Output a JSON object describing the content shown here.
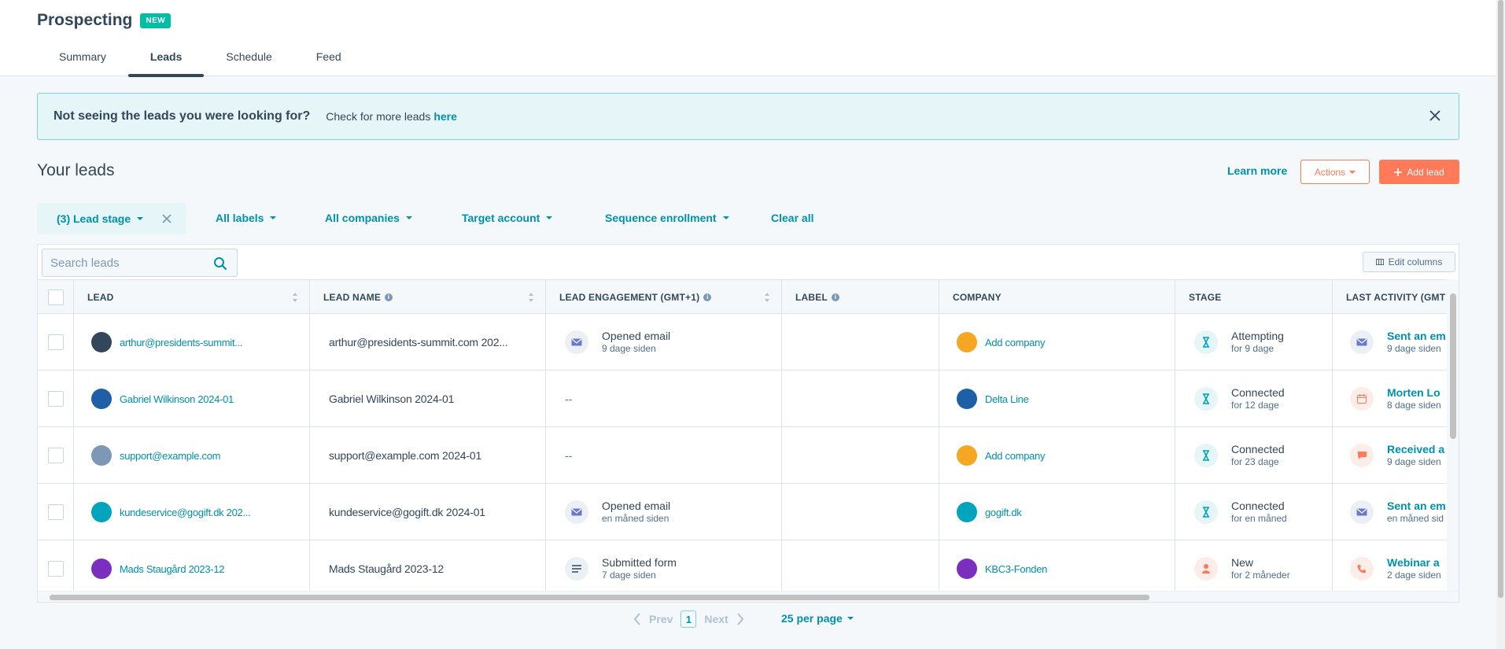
{
  "header": {
    "title": "Prospecting",
    "badge": "NEW",
    "tabs": [
      {
        "label": "Summary"
      },
      {
        "label": "Leads"
      },
      {
        "label": "Schedule"
      },
      {
        "label": "Feed"
      }
    ],
    "active_tab": "Leads"
  },
  "alert": {
    "title": "Not seeing the leads you were looking for?",
    "text": "Check for more leads",
    "link": "here"
  },
  "section": {
    "title": "Your leads",
    "learn_more": "Learn more",
    "actions_label": "Actions",
    "add_label": "Add lead"
  },
  "filters": {
    "active_chip": "(3) Lead stage",
    "items": [
      {
        "label": "All labels"
      },
      {
        "label": "All companies"
      },
      {
        "label": "Target account"
      },
      {
        "label": "Sequence enrollment"
      }
    ],
    "clear_all": "Clear all"
  },
  "table": {
    "search_placeholder": "Search leads",
    "edit_columns": "Edit columns",
    "columns": [
      {
        "label": "LEAD"
      },
      {
        "label": "LEAD NAME"
      },
      {
        "label": "LEAD ENGAGEMENT (GMT+1)"
      },
      {
        "label": "LABEL"
      },
      {
        "label": "COMPANY"
      },
      {
        "label": "STAGE"
      },
      {
        "label": "LAST ACTIVITY (GMT"
      }
    ],
    "rows": [
      {
        "lead": "arthur@presidents-summit...",
        "lead_name": "arthur@presidents-summit.com 202...",
        "engagement": {
          "title": "Opened email",
          "sub": "9 dage siden",
          "icon": "email-icon"
        },
        "label": "",
        "company": "Add company",
        "company_color": "#f5a623",
        "stage": {
          "title": "Attempting",
          "sub": "for 9 dage",
          "icon": "hourglass-icon"
        },
        "activity": {
          "title": "Sent an em",
          "sub": "9 dage siden",
          "icon": "email-icon"
        },
        "avatar_color": "#33475b"
      },
      {
        "lead": "Gabriel Wilkinson 2024-01",
        "lead_name": "Gabriel Wilkinson 2024-01",
        "engagement": {
          "title": "--",
          "sub": "",
          "icon": ""
        },
        "label": "",
        "company": "Delta Line",
        "company_color": "#1f5fa8",
        "stage": {
          "title": "Connected",
          "sub": "for 12 dage",
          "icon": "hourglass-icon"
        },
        "activity": {
          "title": "Morten Lo",
          "sub": "8 dage siden",
          "icon": "calendar-icon"
        },
        "avatar_color": "#1f5fa8"
      },
      {
        "lead": "support@example.com",
        "lead_name": "support@example.com 2024-01",
        "engagement": {
          "title": "--",
          "sub": "",
          "icon": ""
        },
        "label": "",
        "company": "Add company",
        "company_color": "#f5a623",
        "stage": {
          "title": "Connected",
          "sub": "for 23 dage",
          "icon": "hourglass-icon"
        },
        "activity": {
          "title": "Received a",
          "sub": "9 dage siden",
          "icon": "chat-icon"
        },
        "avatar_color": "#7c98b6"
      },
      {
        "lead": "kundeservice@gogift.dk 202...",
        "lead_name": "kundeservice@gogift.dk 2024-01",
        "engagement": {
          "title": "Opened email",
          "sub": "en måned siden",
          "icon": "email-icon"
        },
        "label": "",
        "company": "gogift.dk",
        "company_color": "#00a4bd",
        "stage": {
          "title": "Connected",
          "sub": "for en måned",
          "icon": "hourglass-icon"
        },
        "activity": {
          "title": "Sent an em",
          "sub": "en måned sid",
          "icon": "email-icon"
        },
        "avatar_color": "#00a4bd"
      },
      {
        "lead": "Mads Staugård 2023-12",
        "lead_name": "Mads Staugård 2023-12",
        "engagement": {
          "title": "Submitted form",
          "sub": "7 dage siden",
          "icon": "form-icon"
        },
        "label": "",
        "company": "KBC3-Fonden",
        "company_color": "#7b2fbe",
        "stage": {
          "title": "New",
          "sub": "for 2 måneder",
          "icon": "person-icon"
        },
        "activity": {
          "title": "Webinar a",
          "sub": "2 dage siden",
          "icon": "phone-icon"
        },
        "avatar_color": "#7b2fbe"
      }
    ]
  },
  "pagination": {
    "prev": "Prev",
    "current": "1",
    "next": "Next",
    "per_page": "25 per page"
  },
  "colors": {
    "accent": "#0091ae",
    "primary_button": "#ff7a59",
    "badge": "#00bda5",
    "alert_bg": "#e5f5f8"
  }
}
